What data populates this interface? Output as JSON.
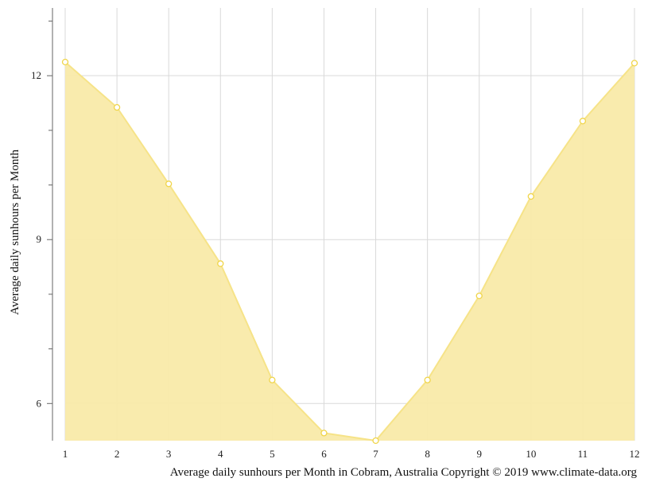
{
  "chart_data": {
    "type": "area",
    "title": "",
    "xlabel": "Average daily sunhours per Month in Cobram, Australia Copyright © 2019 www.climate-data.org",
    "ylabel": "Average daily sunhours per Month",
    "x": [
      1,
      2,
      3,
      4,
      5,
      6,
      7,
      8,
      9,
      10,
      11,
      12
    ],
    "x_tick_labels": [
      "1",
      "2",
      "3",
      "4",
      "5",
      "6",
      "7",
      "8",
      "9",
      "10",
      "11",
      "12"
    ],
    "series": [
      {
        "values": [
          12.25,
          11.42,
          10.02,
          8.56,
          6.43,
          5.46,
          5.32,
          6.43,
          7.97,
          9.79,
          11.17,
          12.23
        ]
      }
    ],
    "xlim": [
      1,
      12
    ],
    "ylim": [
      5.32,
      13.24
    ],
    "y_major_ticks": [
      6,
      9,
      12
    ],
    "y_minor_ticks": [
      7,
      8,
      10,
      11,
      13
    ],
    "grid": true,
    "legend": "none",
    "colors": {
      "fill": "#f9eaa9",
      "line": "#f6e388",
      "marker_fill": "#ffffff",
      "marker_stroke": "#f0d54a",
      "grid": "#d9d9d9",
      "axis": "#666666"
    }
  }
}
